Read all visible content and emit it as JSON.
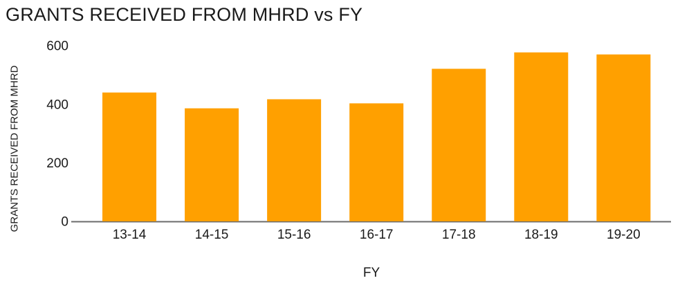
{
  "chart_data": {
    "type": "bar",
    "title": "GRANTS RECEIVED FROM MHRD vs FY",
    "xlabel": "FY",
    "ylabel": "GRANTS RECEIVED FROM MHRD",
    "categories": [
      "13-14",
      "14-15",
      "15-16",
      "16-17",
      "17-18",
      "18-19",
      "19-20"
    ],
    "values": [
      440,
      386,
      417,
      403,
      521,
      577,
      570
    ],
    "ylim": [
      0,
      600
    ],
    "yticks": [
      0,
      200,
      400,
      600
    ],
    "grid": false,
    "legend": "none",
    "colors": {
      "bar": "#FFA000",
      "axis_line": "#6b6b6b",
      "text": "#1a1a1a",
      "background": "#ffffff"
    }
  }
}
